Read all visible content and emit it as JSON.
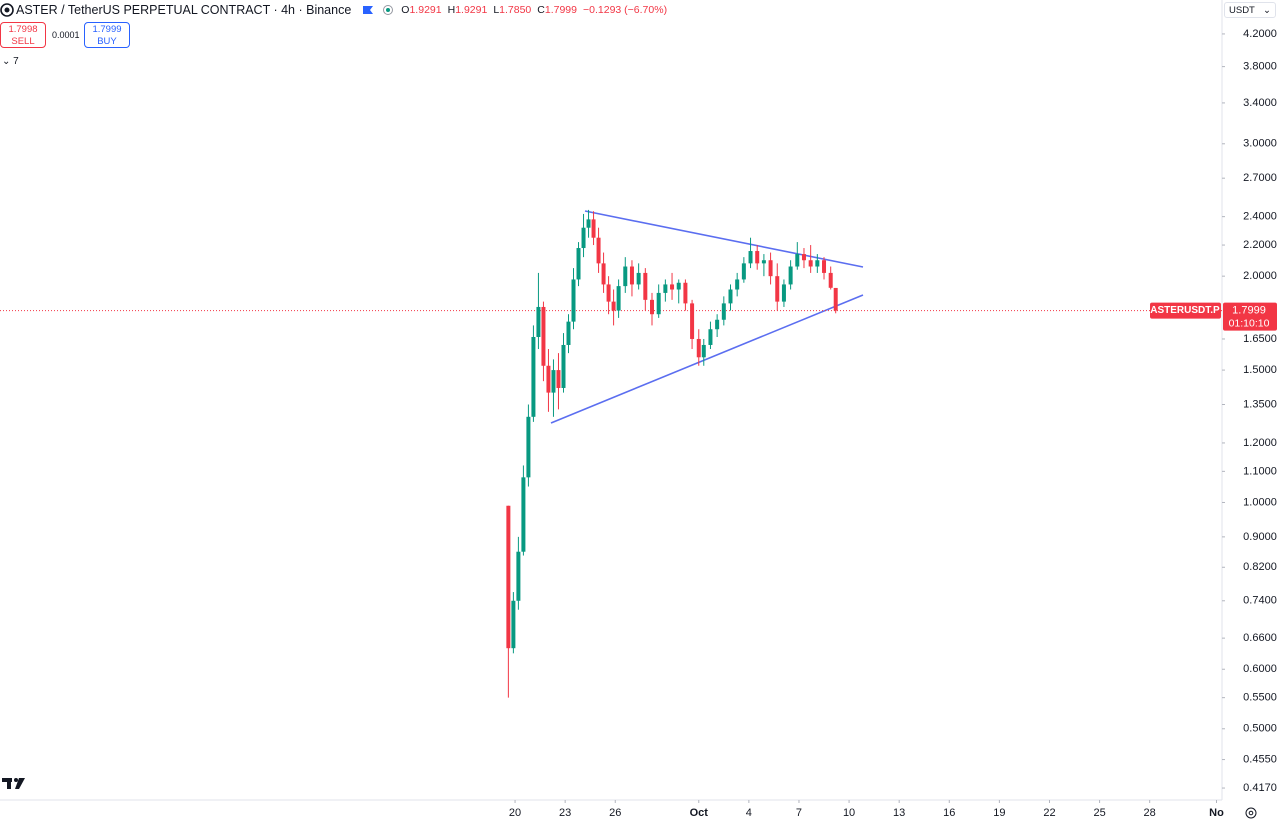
{
  "header": {
    "symbol": "ASTER / TetherUS PERPETUAL CONTRACT · 4h · Binance",
    "ohlc": [
      {
        "key": "O",
        "value": "1.9291"
      },
      {
        "key": "H",
        "value": "1.9291"
      },
      {
        "key": "L",
        "value": "1.7850"
      },
      {
        "key": "C",
        "value": "1.7999"
      }
    ],
    "change": "−0.1293 (−6.70%)"
  },
  "trade_panel": {
    "sell": {
      "price": "1.7998",
      "label": "SELL"
    },
    "spread": "0.0001",
    "buy": {
      "price": "1.7999",
      "label": "BUY"
    }
  },
  "indicators_count": "7",
  "currency": "USDT",
  "chart_data": {
    "type": "candlestick",
    "log_scale": true,
    "up_color": "#089981",
    "down_color": "#f23645",
    "x": [
      19.6,
      19.9,
      20.2,
      20.5,
      20.8,
      21.1,
      21.4,
      21.7,
      22.0,
      22.3,
      22.6,
      22.9,
      23.2,
      23.5,
      23.8,
      24.1,
      24.4,
      24.7,
      25.0,
      25.3,
      25.6,
      25.9,
      26.2,
      26.6,
      27.0,
      27.4,
      27.8,
      28.2,
      28.6,
      29.0,
      29.4,
      29.8,
      30.2,
      30.6,
      31.0,
      31.3,
      31.7,
      32.1,
      32.5,
      32.9,
      33.3,
      33.7,
      34.1,
      34.5,
      34.9,
      35.3,
      35.7,
      36.1,
      36.5,
      36.9,
      37.3,
      37.7,
      38.1,
      38.5,
      38.9,
      39.2
    ],
    "open": [
      0.99,
      0.64,
      0.74,
      0.86,
      1.08,
      1.3,
      1.66,
      1.82,
      1.52,
      1.4,
      1.5,
      1.42,
      1.62,
      1.74,
      1.98,
      2.18,
      2.32,
      2.38,
      2.25,
      2.08,
      1.95,
      1.85,
      1.8,
      1.94,
      2.06,
      1.95,
      2.02,
      1.86,
      1.78,
      1.9,
      1.95,
      1.92,
      1.96,
      1.84,
      1.65,
      1.56,
      1.62,
      1.7,
      1.75,
      1.84,
      1.92,
      1.98,
      2.08,
      2.16,
      2.08,
      2.1,
      2.0,
      1.85,
      1.95,
      2.06,
      2.14,
      2.1,
      2.06,
      2.1,
      2.02,
      1.9291
    ],
    "high": [
      0.99,
      0.76,
      0.9,
      1.12,
      1.35,
      1.72,
      2.02,
      1.85,
      1.6,
      1.55,
      1.58,
      1.68,
      1.78,
      2.05,
      2.22,
      2.42,
      2.45,
      2.44,
      2.32,
      2.15,
      2.0,
      1.92,
      1.98,
      2.12,
      2.1,
      2.08,
      2.05,
      1.9,
      1.95,
      1.98,
      2.02,
      1.98,
      1.98,
      1.86,
      1.7,
      1.65,
      1.74,
      1.78,
      1.88,
      1.95,
      2.02,
      2.12,
      2.25,
      2.2,
      2.14,
      2.15,
      2.08,
      1.98,
      2.1,
      2.22,
      2.18,
      2.2,
      2.14,
      2.12,
      2.06,
      1.9291
    ],
    "low": [
      0.55,
      0.63,
      0.72,
      0.85,
      1.05,
      1.28,
      1.6,
      1.45,
      1.32,
      1.3,
      1.33,
      1.4,
      1.58,
      1.7,
      1.94,
      2.12,
      2.25,
      2.2,
      2.02,
      1.9,
      1.78,
      1.72,
      1.76,
      1.9,
      1.88,
      1.92,
      1.8,
      1.72,
      1.76,
      1.85,
      1.86,
      1.84,
      1.8,
      1.6,
      1.52,
      1.52,
      1.6,
      1.66,
      1.72,
      1.8,
      1.88,
      1.96,
      2.05,
      2.04,
      2.0,
      1.95,
      1.8,
      1.82,
      1.92,
      2.04,
      2.05,
      2.02,
      2.02,
      1.98,
      1.92,
      1.785
    ],
    "close": [
      0.64,
      0.74,
      0.86,
      1.08,
      1.3,
      1.66,
      1.82,
      1.52,
      1.4,
      1.5,
      1.42,
      1.62,
      1.74,
      1.98,
      2.18,
      2.32,
      2.38,
      2.25,
      2.08,
      1.95,
      1.85,
      1.8,
      1.94,
      2.06,
      1.95,
      2.02,
      1.86,
      1.78,
      1.9,
      1.95,
      1.92,
      1.96,
      1.84,
      1.65,
      1.56,
      1.62,
      1.7,
      1.75,
      1.84,
      1.92,
      1.98,
      2.08,
      2.16,
      2.08,
      2.1,
      2.0,
      1.85,
      1.95,
      2.06,
      2.14,
      2.1,
      2.06,
      2.1,
      2.02,
      1.93,
      1.7999
    ],
    "xlim": [
      -10.84,
      62.33
    ],
    "xticks": [
      20,
      23,
      26,
      {
        "value": 31,
        "label": "Oct"
      },
      {
        "value": 34,
        "label": "4"
      },
      {
        "value": 37,
        "label": "7"
      },
      {
        "value": 40,
        "label": "10"
      },
      {
        "value": 43,
        "label": "13"
      },
      {
        "value": 46,
        "label": "16"
      },
      {
        "value": 49,
        "label": "19"
      },
      {
        "value": 52,
        "label": "22"
      },
      {
        "value": 55,
        "label": "25"
      },
      {
        "value": 58,
        "label": "28"
      },
      {
        "value": 62,
        "label": "No"
      }
    ],
    "ylim": [
      0.402,
      4.66
    ],
    "yticks": [
      {
        "value": 4.2,
        "label": "4.2000"
      },
      {
        "value": 3.8,
        "label": "3.8000"
      },
      {
        "value": 3.4,
        "label": "3.4000"
      },
      {
        "value": 3,
        "label": "3.0000"
      },
      {
        "value": 2.7,
        "label": "2.7000"
      },
      {
        "value": 2.4,
        "label": "2.4000"
      },
      {
        "value": 2.2,
        "label": "2.2000"
      },
      {
        "value": 2,
        "label": "2.0000"
      },
      {
        "value": 1.65,
        "label": "1.6500"
      },
      {
        "value": 1.5,
        "label": "1.5000"
      },
      {
        "value": 1.35,
        "label": "1.3500"
      },
      {
        "value": 1.2,
        "label": "1.2000"
      },
      {
        "value": 1.1,
        "label": "1.1000"
      },
      {
        "value": 1,
        "label": "1.0000"
      },
      {
        "value": 0.9,
        "label": "0.9000"
      },
      {
        "value": 0.82,
        "label": "0.8200"
      },
      {
        "value": 0.74,
        "label": "0.7400"
      },
      {
        "value": 0.66,
        "label": "0.6600"
      },
      {
        "value": 0.6,
        "label": "0.6000"
      },
      {
        "value": 0.55,
        "label": "0.5500"
      },
      {
        "value": 0.5,
        "label": "0.5000"
      },
      {
        "value": 0.455,
        "label": "0.4550"
      },
      {
        "value": 0.417,
        "label": "0.4170"
      }
    ],
    "price_line": {
      "value": 1.7999,
      "label": "ASTERUSDT.P",
      "countdown": "01:10:10",
      "color": "#f23645"
    }
  }
}
